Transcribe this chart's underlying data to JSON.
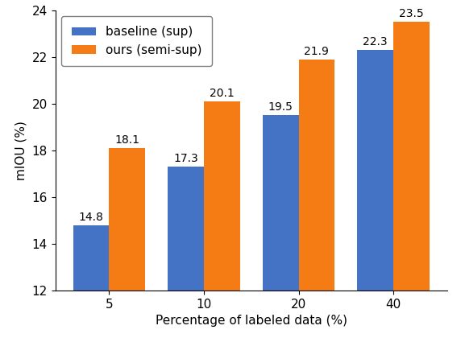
{
  "categories": [
    "5",
    "10",
    "20",
    "40"
  ],
  "baseline_values": [
    14.8,
    17.3,
    19.5,
    22.3
  ],
  "ours_values": [
    18.1,
    20.1,
    21.9,
    23.5
  ],
  "baseline_color": "#4472c4",
  "ours_color": "#f57c14",
  "xlabel": "Percentage of labeled data (%)",
  "ylabel": "mIOU (%)",
  "ylim": [
    12,
    24
  ],
  "yticks": [
    12,
    14,
    16,
    18,
    20,
    22,
    24
  ],
  "legend_labels": [
    "baseline (sup)",
    "ours (semi-sup)"
  ],
  "bar_width": 0.38,
  "label_fontsize": 10,
  "tick_fontsize": 11,
  "axis_label_fontsize": 11,
  "legend_fontsize": 11
}
